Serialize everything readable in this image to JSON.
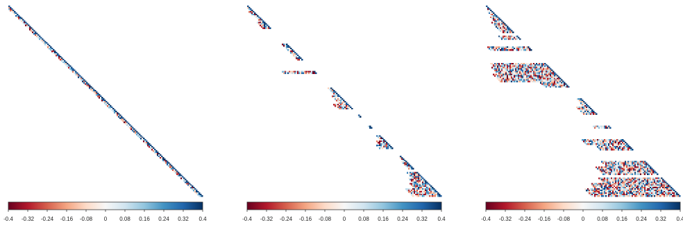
{
  "chart_data": [
    {
      "type": "heatmap",
      "pattern": "banded-diagonal",
      "matrix_size": 140,
      "colorscale": [
        "#67001f",
        "#b2182b",
        "#d6604d",
        "#f4a582",
        "#fddbc7",
        "#f7f7f7",
        "#d1e5f0",
        "#92c5de",
        "#4393c3",
        "#2166ac",
        "#053061"
      ],
      "color_range": [
        -0.4,
        0.4
      ],
      "colorbar_ticks": [
        "-0.4",
        "-0.32",
        "-0.24",
        "-0.16",
        "-0.08",
        "0",
        "0.08",
        "0.16",
        "0.24",
        "0.32",
        "0.4"
      ],
      "band_rows": [
        [
          0,
          140,
          3
        ]
      ],
      "seed": 11
    },
    {
      "type": "heatmap",
      "pattern": "sparse-blocks",
      "matrix_size": 140,
      "colorscale": [
        "#67001f",
        "#b2182b",
        "#d6604d",
        "#f4a582",
        "#fddbc7",
        "#f7f7f7",
        "#d1e5f0",
        "#92c5de",
        "#4393c3",
        "#2166ac",
        "#053061"
      ],
      "color_range": [
        -0.4,
        0.4
      ],
      "colorbar_ticks": [
        "-0.4",
        "-0.32",
        "-0.24",
        "-0.16",
        "-0.08",
        "0",
        "0.08",
        "0.16",
        "0.24",
        "0.32",
        "0.4"
      ],
      "band_rows": [
        [
          0,
          4,
          2
        ],
        [
          4,
          7,
          4
        ],
        [
          7,
          12,
          3
        ],
        [
          12,
          17,
          6
        ],
        [
          28,
          40,
          4
        ],
        [
          48,
          50,
          24
        ],
        [
          60,
          66,
          3
        ],
        [
          66,
          72,
          6
        ],
        [
          72,
          76,
          11
        ],
        [
          80,
          82,
          2
        ],
        [
          88,
          90,
          2
        ],
        [
          95,
          99,
          3
        ],
        [
          99,
          102,
          7
        ],
        [
          102,
          105,
          10
        ],
        [
          110,
          114,
          2
        ],
        [
          114,
          120,
          4
        ],
        [
          122,
          126,
          8
        ],
        [
          126,
          130,
          11
        ],
        [
          130,
          134,
          14
        ],
        [
          134,
          140,
          21
        ]
      ],
      "seed": 23
    },
    {
      "type": "heatmap",
      "pattern": "sparse-blocks",
      "matrix_size": 140,
      "colorscale": [
        "#67001f",
        "#b2182b",
        "#d6604d",
        "#f4a582",
        "#fddbc7",
        "#f7f7f7",
        "#d1e5f0",
        "#92c5de",
        "#4393c3",
        "#2166ac",
        "#053061"
      ],
      "color_range": [
        -0.4,
        0.4
      ],
      "colorbar_ticks": [
        "-0.4",
        "-0.32",
        "-0.24",
        "-0.16",
        "-0.08",
        "0",
        "0.08",
        "0.16",
        "0.24",
        "0.32",
        "0.4"
      ],
      "band_rows": [
        [
          0,
          4,
          2
        ],
        [
          4,
          8,
          4
        ],
        [
          8,
          12,
          6
        ],
        [
          12,
          20,
          9
        ],
        [
          22,
          25,
          14
        ],
        [
          30,
          33,
          30
        ],
        [
          42,
          45,
          40
        ],
        [
          45,
          50,
          42
        ],
        [
          50,
          56,
          46
        ],
        [
          56,
          60,
          18
        ],
        [
          68,
          74,
          4
        ],
        [
          74,
          80,
          10
        ],
        [
          88,
          90,
          12
        ],
        [
          98,
          102,
          30
        ],
        [
          102,
          106,
          24
        ],
        [
          114,
          118,
          32
        ],
        [
          118,
          124,
          40
        ],
        [
          126,
          130,
          46
        ],
        [
          130,
          134,
          56
        ],
        [
          134,
          140,
          64
        ]
      ],
      "seed": 37
    }
  ]
}
